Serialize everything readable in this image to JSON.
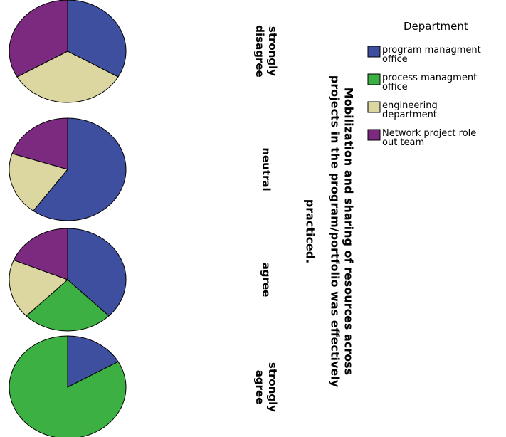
{
  "chart_data": {
    "type": "pie",
    "title": "Mobilization and sharing of resources across projects in the program/portfolio was effectively practiced.",
    "title_lines": [
      "Mobilization and sharing of resources across",
      "projects in the program/portfolio was effectively",
      "practiced."
    ],
    "categories": [
      "strongly disagree",
      "neutral",
      "agree",
      "strongly agree"
    ],
    "category_lines": [
      [
        "strongly",
        "disagree"
      ],
      [
        "neutral"
      ],
      [
        "agree"
      ],
      [
        "strongly",
        "agree"
      ]
    ],
    "legend": {
      "title": "Department",
      "position": "top-right",
      "entries": [
        {
          "name": "program managment office",
          "lines": [
            "program managment",
            "office"
          ],
          "color": "#3f4fa0"
        },
        {
          "name": "process managment office",
          "lines": [
            "process managment",
            "office"
          ],
          "color": "#3cb043"
        },
        {
          "name": "engineering department",
          "lines": [
            "engineering",
            "department"
          ],
          "color": "#dcd6a0"
        },
        {
          "name": "Network project role out team",
          "lines": [
            "Network project role",
            "out team"
          ],
          "color": "#7b2a7f"
        }
      ]
    },
    "series": [
      {
        "category": "strongly disagree",
        "values": [
          33.3,
          0,
          33.3,
          33.3
        ]
      },
      {
        "category": "neutral",
        "values": [
          60,
          0,
          20,
          20
        ]
      },
      {
        "category": "agree",
        "values": [
          37.5,
          25,
          18.75,
          18.75
        ]
      },
      {
        "category": "strongly agree",
        "values": [
          16.7,
          83.3,
          0,
          0
        ]
      }
    ],
    "start_angle_deg": 0,
    "direction": "clockwise",
    "orientation": "rotated 90 degrees clockwise"
  }
}
